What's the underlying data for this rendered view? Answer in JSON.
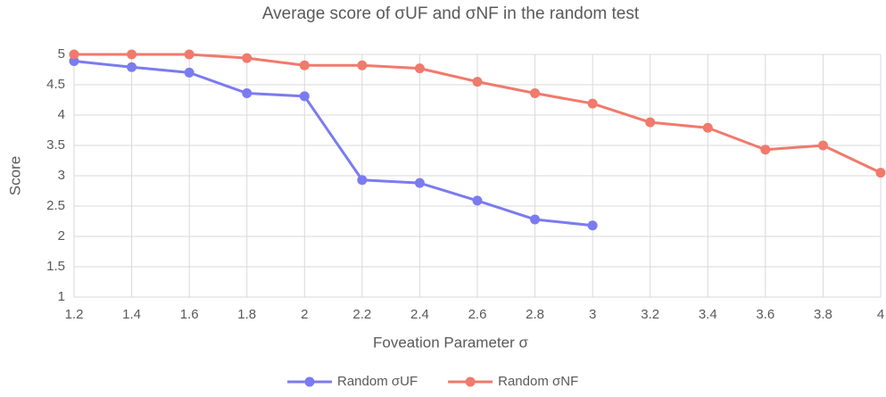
{
  "chart_data": {
    "type": "line",
    "title": "Average score of σUF and σNF in the random test",
    "x_label": "Foveation Parameter σ",
    "y_label": "Score",
    "x": [
      1.2,
      1.4,
      1.6,
      1.8,
      2,
      2.2,
      2.4,
      2.6,
      2.8,
      3,
      3.2,
      3.4,
      3.6,
      3.8,
      4
    ],
    "series": [
      {
        "name": "Random σUF",
        "color": "#7b7bf0",
        "values": [
          4.89,
          4.79,
          4.7,
          4.36,
          4.31,
          2.93,
          2.88,
          2.59,
          2.28,
          2.18,
          null,
          null,
          null,
          null,
          null
        ]
      },
      {
        "name": "Random σNF",
        "color": "#f07a6c",
        "values": [
          5,
          5,
          5,
          4.94,
          4.82,
          4.82,
          4.77,
          4.55,
          4.36,
          4.19,
          3.88,
          3.79,
          3.43,
          3.5,
          3.05
        ]
      }
    ],
    "xlim": [
      1.2,
      4
    ],
    "xticks": [
      1.2,
      1.4,
      1.6,
      1.8,
      2,
      2.2,
      2.4,
      2.6,
      2.8,
      3,
      3.2,
      3.4,
      3.6,
      3.8,
      4
    ],
    "ylim": [
      1,
      5
    ],
    "yticks": [
      1,
      1.5,
      2,
      2.5,
      3,
      3.5,
      4,
      4.5,
      5
    ],
    "grid": true,
    "legend": "bottom"
  }
}
